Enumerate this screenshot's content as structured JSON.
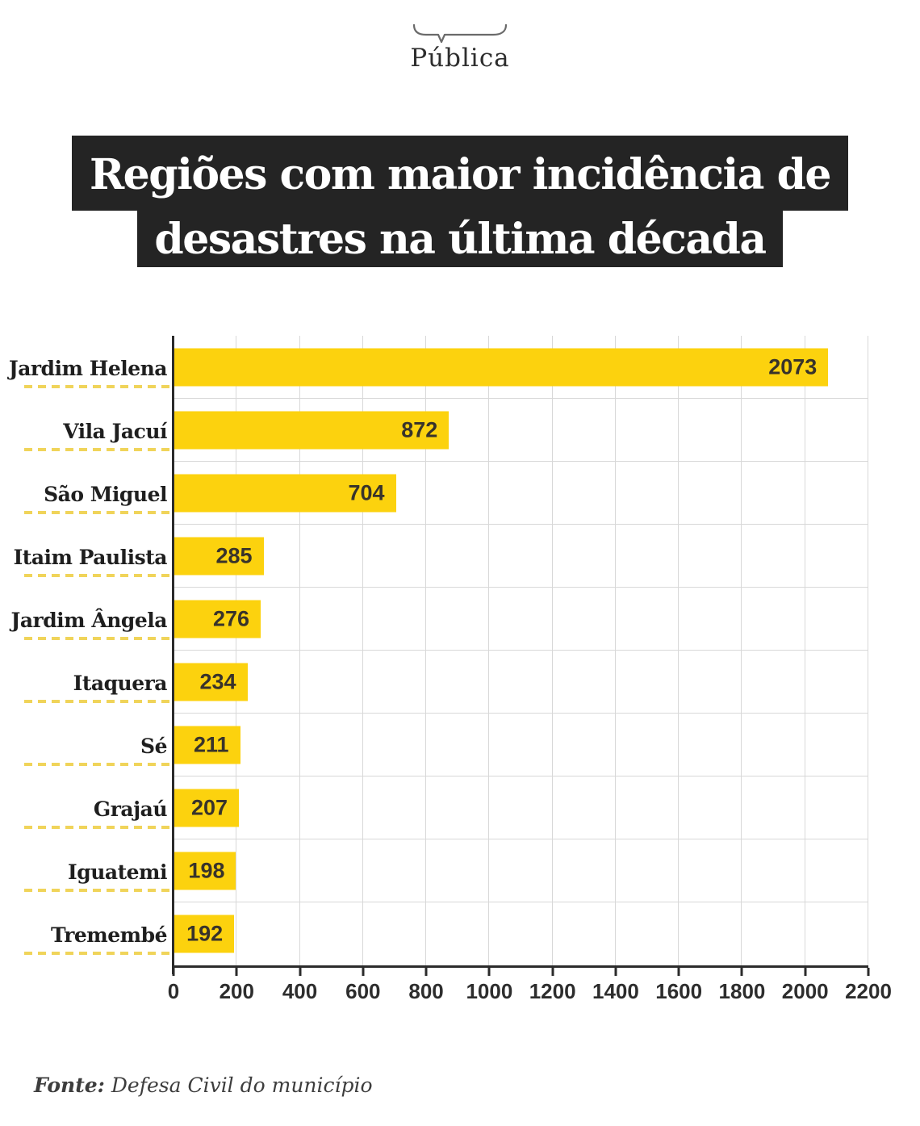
{
  "logo": {
    "text": "Pública",
    "icon": "brace-icon"
  },
  "title": {
    "line1": "Regiões com maior incidência de",
    "line2": "desastres na última década"
  },
  "chart_data": {
    "type": "bar",
    "orientation": "horizontal",
    "title": "Regiões com maior incidência de desastres na última década",
    "categories": [
      "Jardim Helena",
      "Vila Jacuí",
      "São Miguel",
      "Itaim Paulista",
      "Jardim Ângela",
      "Itaquera",
      "Sé",
      "Grajaú",
      "Iguatemi",
      "Tremembé"
    ],
    "values": [
      2073,
      872,
      704,
      285,
      276,
      234,
      211,
      207,
      198,
      192
    ],
    "xlabel": "",
    "ylabel": "",
    "xlim": [
      0,
      2200
    ],
    "x_ticks": [
      0,
      200,
      400,
      600,
      800,
      1000,
      1200,
      1400,
      1600,
      1800,
      2000,
      2200
    ],
    "grid": true,
    "value_label_position": "inside-end",
    "bar_color": "#FCD20E"
  },
  "footer": {
    "source_label": "Fonte:",
    "source_text": "Defesa Civil do município"
  },
  "colors": {
    "bar": "#FCD20E",
    "dashed_underline": "#F0D45A",
    "title_background": "#242424",
    "title_text": "#FFFFFF",
    "gridline": "#D8D8D8",
    "axis": "#2B2B2B",
    "value_text": "#38332B",
    "label_text": "#1F1F1F"
  }
}
